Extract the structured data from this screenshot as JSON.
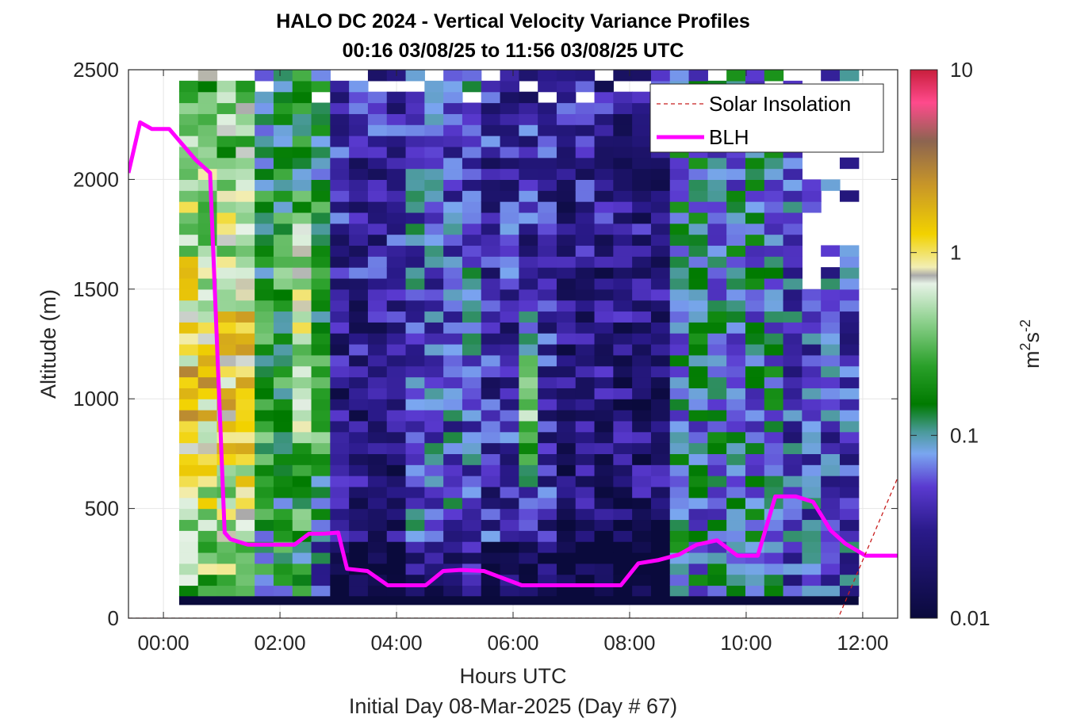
{
  "chart_data": {
    "type": "heatmap",
    "title": "HALO DC 2024 - Vertical Velocity Variance Profiles",
    "subtitle": "00:16 03/08/25 to 11:56 03/08/25  UTC",
    "xlabel": "Hours UTC",
    "xlabel2": "Initial Day 08-Mar-2025 (Day # 67)",
    "ylabel": "Altitude (m)",
    "xlim_hours": [
      -0.6,
      12.6
    ],
    "ylim": [
      0,
      2500
    ],
    "x_ticks": [
      {
        "value": 0,
        "label": "00:00"
      },
      {
        "value": 2,
        "label": "02:00"
      },
      {
        "value": 4,
        "label": "04:00"
      },
      {
        "value": 6,
        "label": "06:00"
      },
      {
        "value": 8,
        "label": "08:00"
      },
      {
        "value": 10,
        "label": "10:00"
      },
      {
        "value": 12,
        "label": "12:00"
      }
    ],
    "y_ticks": [
      {
        "value": 0,
        "label": "0"
      },
      {
        "value": 500,
        "label": "500"
      },
      {
        "value": 1000,
        "label": "1000"
      },
      {
        "value": 1500,
        "label": "1500"
      },
      {
        "value": 2000,
        "label": "2000"
      },
      {
        "value": 2500,
        "label": "2500"
      }
    ],
    "grid": true,
    "colorbar": {
      "label_base": "m",
      "label_sup1": "2",
      "label_mid": "s",
      "label_sup2": "-2",
      "scale": "log",
      "range": [
        0.01,
        10
      ],
      "ticks": [
        {
          "value": 0.01,
          "label": "0.01"
        },
        {
          "value": 0.1,
          "label": "0.1"
        },
        {
          "value": 1,
          "label": "1"
        },
        {
          "value": 10,
          "label": "10"
        }
      ],
      "colors": [
        {
          "pos": 0.0,
          "color": "#0a0a3c"
        },
        {
          "pos": 0.16,
          "color": "#2a1a8a"
        },
        {
          "pos": 0.24,
          "color": "#5a3ad0"
        },
        {
          "pos": 0.3,
          "color": "#7aa6f0"
        },
        {
          "pos": 0.34,
          "color": "#4a9a9a"
        },
        {
          "pos": 0.39,
          "color": "#007a00"
        },
        {
          "pos": 0.46,
          "color": "#2aa02a"
        },
        {
          "pos": 0.54,
          "color": "#8cd08c"
        },
        {
          "pos": 0.61,
          "color": "#e6f2e6"
        },
        {
          "pos": 0.625,
          "color": "#aaaaaa"
        },
        {
          "pos": 0.64,
          "color": "#f2eeb4"
        },
        {
          "pos": 0.7,
          "color": "#f2d200"
        },
        {
          "pos": 0.79,
          "color": "#c89628"
        },
        {
          "pos": 0.87,
          "color": "#8c6450"
        },
        {
          "pos": 0.94,
          "color": "#ff4a8c"
        },
        {
          "pos": 1.0,
          "color": "#c81e3c"
        }
      ]
    },
    "legend": {
      "placement": "top-right",
      "entries": [
        {
          "name": "Solar Insolation",
          "color": "#c81e1e",
          "style": "dashed"
        },
        {
          "name": "BLH",
          "color": "#ff00ff",
          "style": "solid"
        }
      ]
    },
    "series": [
      {
        "name": "BLH",
        "x": [
          -0.6,
          -0.4,
          -0.2,
          0.0,
          0.1,
          0.55,
          0.8,
          1.05,
          1.15,
          1.45,
          1.7,
          2.0,
          2.25,
          2.5,
          2.75,
          3.0,
          3.15,
          3.5,
          3.85,
          4.2,
          4.5,
          4.8,
          5.1,
          5.5,
          5.8,
          6.15,
          6.5,
          7.0,
          7.5,
          7.85,
          8.15,
          8.5,
          8.85,
          9.15,
          9.5,
          9.85,
          10.2,
          10.5,
          10.85,
          11.15,
          11.45,
          11.7,
          12.05,
          12.6
        ],
        "y": [
          2030,
          2260,
          2230,
          2230,
          2230,
          2090,
          2030,
          390,
          360,
          335,
          335,
          335,
          335,
          385,
          385,
          390,
          225,
          215,
          150,
          150,
          150,
          215,
          220,
          215,
          185,
          150,
          150,
          150,
          150,
          150,
          250,
          265,
          290,
          335,
          355,
          285,
          285,
          555,
          555,
          530,
          400,
          340,
          285,
          285
        ]
      },
      {
        "name": "Solar Insolation",
        "x": [
          -0.6,
          11.58,
          12.6
        ],
        "y": [
          0,
          0,
          640
        ]
      }
    ],
    "heatmap": {
      "x_start_hours": 0.27,
      "x_end_hours": 11.93,
      "columns": 36,
      "y_start": 100,
      "y_end": 2500,
      "rows": 48,
      "value_units": "log10(m2 s-2)",
      "bottom_row_value": -2.0
    }
  }
}
